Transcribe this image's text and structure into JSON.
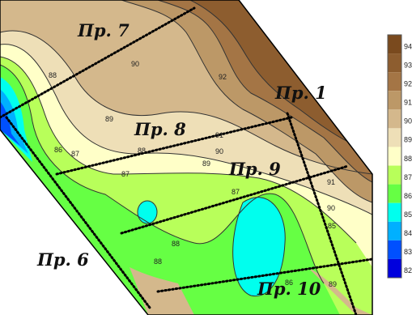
{
  "map": {
    "profiles": [
      {
        "id": "p7",
        "label": "Пр. 7"
      },
      {
        "id": "p1",
        "label": "Пр. 1"
      },
      {
        "id": "p8",
        "label": "Пр. 8"
      },
      {
        "id": "p9",
        "label": "Пр. 9"
      },
      {
        "id": "p6",
        "label": "Пр. 6"
      },
      {
        "id": "p10",
        "label": "Пр. 10"
      }
    ],
    "contour_labels": [
      "88",
      "90",
      "92",
      "89",
      "91",
      "86",
      "87",
      "90",
      "89",
      "88",
      "91",
      "90",
      "87",
      "85",
      "87",
      "88",
      "86",
      "88",
      "89"
    ]
  },
  "legend": {
    "ticks": [
      "94",
      "93",
      "92",
      "91",
      "90",
      "89",
      "88",
      "87",
      "86",
      "85",
      "84",
      "83",
      "82"
    ],
    "colors": [
      "#7a4a1e",
      "#8d5d2f",
      "#a47545",
      "#bc9867",
      "#d4b88c",
      "#eedfb7",
      "#ffffc8",
      "#b8ff5a",
      "#66ff44",
      "#00ffee",
      "#00b0ff",
      "#0050ff",
      "#0000dd"
    ]
  }
}
